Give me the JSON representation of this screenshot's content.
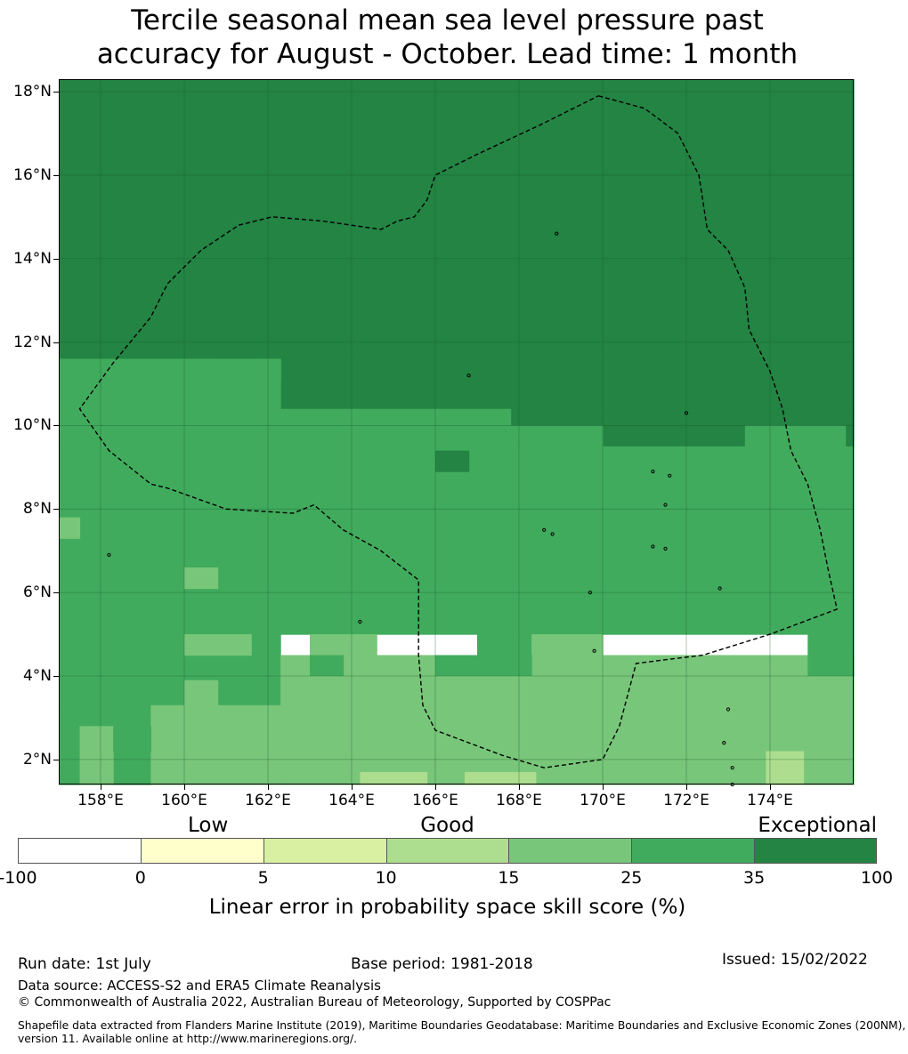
{
  "title_line1": "Tercile seasonal mean sea level pressure past",
  "title_line2": "accuracy for August - October. Lead time: 1 month",
  "map": {
    "lat_range": [
      1.4,
      18.3
    ],
    "lon_range": [
      157.0,
      176.0
    ],
    "lat_labels": [
      {
        "lat": 18,
        "label": "18°N"
      },
      {
        "lat": 16,
        "label": "16°N"
      },
      {
        "lat": 14,
        "label": "14°N"
      },
      {
        "lat": 12,
        "label": "12°N"
      },
      {
        "lat": 10,
        "label": "10°N"
      },
      {
        "lat": 8,
        "label": "8°N"
      },
      {
        "lat": 6,
        "label": "6°N"
      },
      {
        "lat": 4,
        "label": "4°N"
      },
      {
        "lat": 2,
        "label": "2°N"
      }
    ],
    "lon_labels": [
      {
        "lon": 158,
        "label": "158°E"
      },
      {
        "lon": 160,
        "label": "160°E"
      },
      {
        "lon": 162,
        "label": "162°E"
      },
      {
        "lon": 164,
        "label": "164°E"
      },
      {
        "lon": 166,
        "label": "166°E"
      },
      {
        "lon": 168,
        "label": "168°E"
      },
      {
        "lon": 170,
        "label": "170°E"
      },
      {
        "lon": 172,
        "label": "172°E"
      },
      {
        "lon": 174,
        "label": "174°E"
      }
    ],
    "colors": {
      "c35_100": "#238443",
      "c25_35": "#41ab5d",
      "c15_25": "#78c679",
      "c10_15": "#addd8e",
      "c5_10": "#d9f0a3",
      "c0_5": "#ffffcc"
    },
    "eez_boundary_style": "dashed",
    "regions": [
      {
        "cls": "c35_100",
        "lon": [
          157.0,
          176.0
        ],
        "lat": [
          11.6,
          18.3
        ]
      },
      {
        "cls": "c35_100",
        "lon": [
          162.3,
          176.0
        ],
        "lat": [
          10.4,
          11.6
        ]
      },
      {
        "cls": "c35_100",
        "lon": [
          167.8,
          176.0
        ],
        "lat": [
          10.0,
          10.4
        ]
      },
      {
        "cls": "c35_100",
        "lon": [
          170.0,
          173.4
        ],
        "lat": [
          9.5,
          10.0
        ]
      },
      {
        "cls": "c35_100",
        "lon": [
          175.8,
          176.0
        ],
        "lat": [
          9.5,
          10.0
        ]
      },
      {
        "cls": "c25_35",
        "lon": [
          157.0,
          162.3
        ],
        "lat": [
          10.4,
          11.6
        ]
      },
      {
        "cls": "c25_35",
        "lon": [
          157.0,
          167.8
        ],
        "lat": [
          10.0,
          10.4
        ]
      },
      {
        "cls": "c25_35",
        "lon": [
          157.0,
          170.0
        ],
        "lat": [
          9.5,
          10.0
        ]
      },
      {
        "cls": "c25_35",
        "lon": [
          173.4,
          175.8
        ],
        "lat": [
          9.5,
          10.0
        ]
      },
      {
        "cls": "c25_35",
        "lon": [
          157.0,
          176.0
        ],
        "lat": [
          5.0,
          9.5
        ]
      },
      {
        "cls": "c25_35",
        "lon": [
          157.0,
          162.3
        ],
        "lat": [
          3.3,
          5.0
        ]
      },
      {
        "cls": "c25_35",
        "lon": [
          157.0,
          159.2
        ],
        "lat": [
          1.4,
          3.3
        ]
      },
      {
        "cls": "c25_35",
        "lon": [
          167.0,
          170.0
        ],
        "lat": [
          4.5,
          5.0
        ]
      },
      {
        "cls": "c25_35",
        "lon": [
          174.9,
          176.0
        ],
        "lat": [
          4.5,
          5.0
        ]
      },
      {
        "cls": "c35_100",
        "lon": [
          158.3,
          159.1
        ],
        "lat": [
          16.0,
          16.5
        ]
      },
      {
        "cls": "c25_35",
        "lon": [
          160.0,
          160.8
        ],
        "lat": [
          11.1,
          11.6
        ]
      },
      {
        "cls": "c25_35",
        "lon": [
          161.6,
          162.3
        ],
        "lat": [
          11.1,
          11.6
        ]
      },
      {
        "cls": "c35_100",
        "lon": [
          166.0,
          166.8
        ],
        "lat": [
          8.9,
          9.4
        ]
      },
      {
        "cls": "c15_25",
        "lon": [
          157.0,
          157.5
        ],
        "lat": [
          7.3,
          7.8
        ]
      },
      {
        "cls": "c15_25",
        "lon": [
          160.0,
          160.8
        ],
        "lat": [
          6.1,
          6.6
        ]
      },
      {
        "cls": "c15_25",
        "lon": [
          160.0,
          161.6
        ],
        "lat": [
          4.5,
          5.0
        ]
      },
      {
        "cls": "c15_25",
        "lon": [
          163.0,
          164.6
        ],
        "lat": [
          4.5,
          5.0
        ]
      },
      {
        "cls": "c15_25",
        "lon": [
          168.3,
          170.0
        ],
        "lat": [
          4.5,
          5.0
        ]
      },
      {
        "cls": "c15_25",
        "lon": [
          162.3,
          176.0
        ],
        "lat": [
          4.0,
          4.5
        ]
      },
      {
        "cls": "c25_35",
        "lon": [
          163.0,
          163.8
        ],
        "lat": [
          4.0,
          4.5
        ]
      },
      {
        "cls": "c25_35",
        "lon": [
          166.0,
          168.3
        ],
        "lat": [
          4.0,
          4.5
        ]
      },
      {
        "cls": "c25_35",
        "lon": [
          174.9,
          176.0
        ],
        "lat": [
          4.0,
          4.5
        ]
      },
      {
        "cls": "c15_25",
        "lon": [
          162.3,
          176.0
        ],
        "lat": [
          1.4,
          4.0
        ]
      },
      {
        "cls": "c15_25",
        "lon": [
          160.0,
          160.8
        ],
        "lat": [
          3.3,
          3.9
        ]
      },
      {
        "cls": "c15_25",
        "lon": [
          159.2,
          162.3
        ],
        "lat": [
          1.4,
          3.3
        ]
      },
      {
        "cls": "c15_25",
        "lon": [
          157.5,
          158.3
        ],
        "lat": [
          1.4,
          2.8
        ]
      },
      {
        "cls": "c25_35",
        "lon": [
          158.3,
          159.2
        ],
        "lat": [
          2.2,
          2.8
        ]
      },
      {
        "cls": "c10_15",
        "lon": [
          164.2,
          165.8
        ],
        "lat": [
          1.4,
          1.7
        ]
      },
      {
        "cls": "c10_15",
        "lon": [
          166.7,
          168.4
        ],
        "lat": [
          1.4,
          1.7
        ]
      },
      {
        "cls": "c10_15",
        "lon": [
          173.9,
          174.8
        ],
        "lat": [
          1.4,
          1.7
        ]
      },
      {
        "cls": "c10_15",
        "lon": [
          173.9,
          174.8
        ],
        "lat": [
          1.7,
          2.2
        ]
      }
    ],
    "eez_path_lonlat": [
      [
        169.9,
        17.9
      ],
      [
        171.0,
        17.6
      ],
      [
        171.8,
        17.0
      ],
      [
        172.3,
        16.0
      ],
      [
        172.5,
        14.7
      ],
      [
        173.0,
        14.2
      ],
      [
        173.4,
        13.3
      ],
      [
        173.5,
        12.3
      ],
      [
        174.0,
        11.3
      ],
      [
        174.3,
        10.4
      ],
      [
        174.5,
        9.4
      ],
      [
        174.9,
        8.6
      ],
      [
        175.2,
        7.5
      ],
      [
        175.4,
        6.5
      ],
      [
        175.6,
        5.6
      ],
      [
        174.0,
        5.0
      ],
      [
        172.4,
        4.5
      ],
      [
        170.8,
        4.3
      ],
      [
        170.4,
        2.8
      ],
      [
        170.0,
        2.0
      ],
      [
        169.3,
        1.9
      ],
      [
        168.6,
        1.8
      ],
      [
        167.6,
        2.1
      ],
      [
        166.8,
        2.4
      ],
      [
        166.0,
        2.7
      ],
      [
        165.7,
        3.3
      ],
      [
        165.6,
        4.5
      ],
      [
        165.6,
        6.3
      ],
      [
        164.7,
        7.0
      ],
      [
        163.8,
        7.5
      ],
      [
        163.1,
        8.1
      ],
      [
        162.6,
        7.9
      ],
      [
        161.0,
        8.0
      ],
      [
        159.6,
        8.5
      ],
      [
        159.2,
        8.6
      ],
      [
        158.2,
        9.4
      ],
      [
        157.5,
        10.4
      ],
      [
        158.3,
        11.5
      ],
      [
        159.2,
        12.6
      ],
      [
        159.6,
        13.4
      ],
      [
        160.4,
        14.2
      ],
      [
        161.3,
        14.8
      ],
      [
        162.1,
        15.0
      ],
      [
        163.3,
        14.9
      ],
      [
        164.7,
        14.7
      ],
      [
        165.1,
        14.9
      ],
      [
        165.5,
        15.0
      ],
      [
        165.8,
        15.4
      ],
      [
        166.0,
        16.0
      ],
      [
        167.0,
        16.5
      ],
      [
        168.5,
        17.2
      ],
      [
        169.9,
        17.9
      ]
    ],
    "islands_lonlat": [
      [
        171.2,
        7.1
      ],
      [
        171.5,
        7.05
      ],
      [
        172.9,
        2.4
      ],
      [
        173.0,
        3.2
      ],
      [
        173.1,
        1.8
      ],
      [
        158.2,
        6.9
      ],
      [
        168.8,
        7.4
      ],
      [
        168.6,
        7.5
      ],
      [
        169.8,
        4.6
      ],
      [
        169.7,
        6.0
      ],
      [
        172.8,
        6.1
      ],
      [
        164.2,
        5.3
      ],
      [
        168.9,
        14.6
      ],
      [
        166.8,
        11.2
      ],
      [
        172.0,
        10.3
      ],
      [
        173.1,
        1.4
      ],
      [
        171.6,
        8.8
      ],
      [
        171.2,
        8.9
      ],
      [
        171.5,
        8.1
      ]
    ]
  },
  "colorbar": {
    "categories": [
      {
        "label": "Low",
        "position": "0-10"
      },
      {
        "label": "Good",
        "position": "10-25"
      },
      {
        "label": "Exceptional",
        "position": "35-100"
      }
    ],
    "bins": [
      {
        "from": -100,
        "to": 0,
        "color": "#ffffff"
      },
      {
        "from": 0,
        "to": 5,
        "color": "#ffffcc"
      },
      {
        "from": 5,
        "to": 10,
        "color": "#d9f0a3"
      },
      {
        "from": 10,
        "to": 15,
        "color": "#addd8e"
      },
      {
        "from": 15,
        "to": 25,
        "color": "#78c679"
      },
      {
        "from": 25,
        "to": 35,
        "color": "#41ab5d"
      },
      {
        "from": 35,
        "to": 100,
        "color": "#238443"
      }
    ],
    "tick_labels": [
      "-100",
      "0",
      "5",
      "10",
      "15",
      "25",
      "35",
      "100"
    ],
    "title": "Linear error in probability space skill score (%)"
  },
  "footer": {
    "run_date": "Run date: 1st July",
    "base_period": "Base period: 1981-2018",
    "issued": "Issued: 15/02/2022",
    "data_source": "Data source: ACCESS-S2 and ERA5 Climate Reanalysis",
    "copyright": "© Commonwealth of Australia 2022, Australian Bureau of Meteorology, Supported by COSPPac",
    "shapefile_line1": "Shapefile data extracted from Flanders Marine Institute (2019), Maritime Boundaries Geodatabase: Maritime Boundaries and Exclusive Economic Zones (200NM),",
    "shapefile_line2": "version 11. Available online at http://www.marineregions.org/."
  }
}
